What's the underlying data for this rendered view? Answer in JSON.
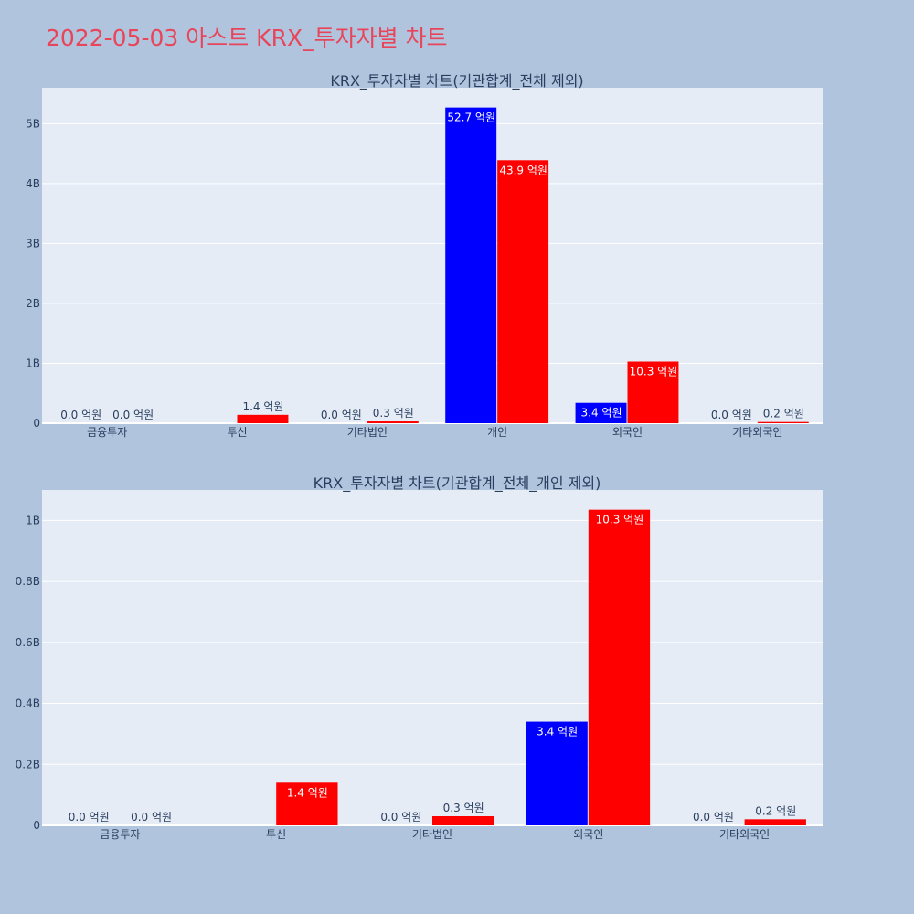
{
  "page": {
    "title": "2022-05-03 아스트 KRX_투자자별 차트"
  },
  "colors": {
    "background": "#b0c4de",
    "plot_bg": "#e5ecf6",
    "title": "#e8455a",
    "series_a": "#0000ff",
    "series_b": "#ff0000",
    "text": "#2a3f5f"
  },
  "chart_data": [
    {
      "type": "bar",
      "title": "KRX_투자자별 차트(기관합계_전체 제외)",
      "categories": [
        "금융투자",
        "투신",
        "기타법인",
        "개인",
        "외국인",
        "기타외국인"
      ],
      "series": [
        {
          "color": "#0000ff",
          "values": [
            0.0,
            0.0,
            0.0,
            5.27,
            0.34,
            0.0
          ],
          "labels": [
            "0.0 억원",
            "",
            "0.0 억원",
            "52.7 억원",
            "3.4 억원",
            "0.0 억원"
          ]
        },
        {
          "color": "#ff0000",
          "values": [
            0.0,
            0.14,
            0.03,
            4.39,
            1.03,
            0.02
          ],
          "labels": [
            "0.0 억원",
            "1.4 억원",
            "0.3 억원",
            "43.9 억원",
            "10.3 억원",
            "0.2 억원"
          ]
        }
      ],
      "ylim": [
        0,
        5.6
      ],
      "yticks": [
        0,
        1,
        2,
        3,
        4,
        5
      ],
      "ytick_labels": [
        "0",
        "1B",
        "2B",
        "3B",
        "4B",
        "5B"
      ],
      "grid": true
    },
    {
      "type": "bar",
      "title": "KRX_투자자별 차트(기관합계_전체_개인 제외)",
      "categories": [
        "금융투자",
        "투신",
        "기타법인",
        "외국인",
        "기타외국인"
      ],
      "series": [
        {
          "color": "#0000ff",
          "values": [
            0.0,
            0.0,
            0.0,
            0.34,
            0.0
          ],
          "labels": [
            "0.0 억원",
            "",
            "0.0 억원",
            "3.4 억원",
            "0.0 억원"
          ]
        },
        {
          "color": "#ff0000",
          "values": [
            0.0,
            0.14,
            0.03,
            1.035,
            0.02
          ],
          "labels": [
            "0.0 억원",
            "1.4 억원",
            "0.3 억원",
            "10.3 억원",
            "0.2 억원"
          ]
        }
      ],
      "ylim": [
        0,
        1.1
      ],
      "yticks": [
        0,
        0.2,
        0.4,
        0.6,
        0.8,
        1.0
      ],
      "ytick_labels": [
        "0",
        "0.2B",
        "0.4B",
        "0.6B",
        "0.8B",
        "1B"
      ],
      "grid": true
    }
  ]
}
